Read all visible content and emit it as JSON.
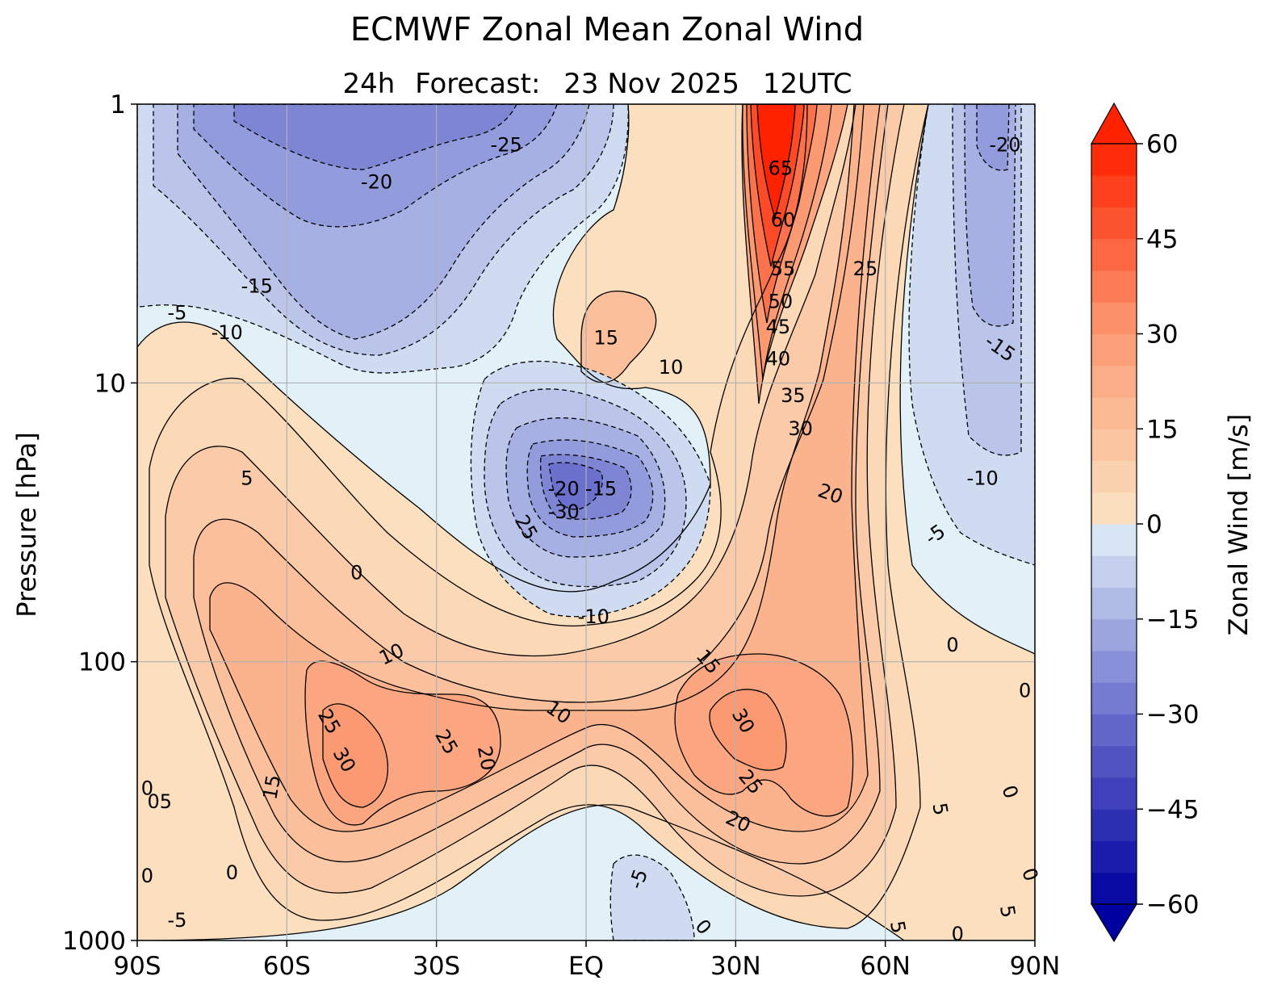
{
  "title": "ECMWF Zonal Mean Zonal Wind",
  "subtitle": {
    "lead": "24h",
    "label": "Forecast:",
    "date": "23 Nov 2025",
    "time": "12UTC"
  },
  "chart_data": {
    "type": "heatmap",
    "subtype": "filled-contour",
    "ylabel": "Pressure [hPa]",
    "yscale": "log",
    "ylim": [
      1000,
      1
    ],
    "xlim": [
      -90,
      90
    ],
    "grid": true,
    "x_ticks": [
      {
        "value": -90,
        "label": "90S"
      },
      {
        "value": -60,
        "label": "60S"
      },
      {
        "value": -30,
        "label": "30S"
      },
      {
        "value": 0,
        "label": "EQ"
      },
      {
        "value": 30,
        "label": "30N"
      },
      {
        "value": 60,
        "label": "60N"
      },
      {
        "value": 90,
        "label": "90N"
      }
    ],
    "y_ticks": [
      {
        "value": 1,
        "label": "1"
      },
      {
        "value": 10,
        "label": "10"
      },
      {
        "value": 100,
        "label": "100"
      },
      {
        "value": 1000,
        "label": "1000"
      }
    ],
    "colorbar": {
      "label": "Zonal Wind [m/s]",
      "min": -60,
      "max": 60,
      "step": 5,
      "extend": "both",
      "ticks": [
        {
          "value": 60,
          "label": "60"
        },
        {
          "value": 45,
          "label": "45"
        },
        {
          "value": 30,
          "label": "30"
        },
        {
          "value": 15,
          "label": "15"
        },
        {
          "value": 0,
          "label": "0"
        },
        {
          "value": -15,
          "label": "−15"
        },
        {
          "value": -30,
          "label": "−30"
        },
        {
          "value": -45,
          "label": "−45"
        },
        {
          "value": -60,
          "label": "−60"
        }
      ],
      "colors": {
        "neg_end": "#0000a0",
        "neg_mid": "#6a70cc",
        "neg_near": "#e2f0f8",
        "pos_near": "#fbe4c4",
        "pos_mid": "#fb9a72",
        "pos_end": "#ff2200"
      }
    },
    "features": [
      {
        "name": "SH polar night jet region (weak easterly aloft)",
        "lat": -40,
        "pressure": 2,
        "value": -25
      },
      {
        "name": "NH polar night jet",
        "lat": 40,
        "pressure": 1.5,
        "value": 65
      },
      {
        "name": "Equatorial easterly core",
        "lat": -5,
        "pressure": 25,
        "value": -30
      },
      {
        "name": "SH subtropical jet",
        "lat": -45,
        "pressure": 200,
        "value": 30
      },
      {
        "name": "NH subtropical jet",
        "lat": 35,
        "pressure": 200,
        "value": 30
      },
      {
        "name": "Tropical westerly pocket",
        "lat": 5,
        "pressure": 7,
        "value": 15
      },
      {
        "name": "NH polar easterlies aloft",
        "lat": 80,
        "pressure": 2,
        "value": -20
      }
    ],
    "contour_labels": [
      {
        "text": "-25",
        "lat": -16,
        "p": 1.4,
        "rot": 0
      },
      {
        "text": "-20",
        "lat": -42,
        "p": 1.9,
        "rot": 0
      },
      {
        "text": "-15",
        "lat": -66,
        "p": 4.5,
        "rot": 0
      },
      {
        "text": "-5",
        "lat": -82,
        "p": 5.6,
        "rot": 0
      },
      {
        "text": "-10",
        "lat": -72,
        "p": 6.6,
        "rot": 0
      },
      {
        "text": "65",
        "lat": 39,
        "p": 1.7,
        "rot": 0
      },
      {
        "text": "60",
        "lat": 39.5,
        "p": 2.6,
        "rot": 0
      },
      {
        "text": "55",
        "lat": 39.5,
        "p": 3.9,
        "rot": 0
      },
      {
        "text": "50",
        "lat": 39,
        "p": 5.1,
        "rot": 0
      },
      {
        "text": "45",
        "lat": 38.5,
        "p": 6.3,
        "rot": 0
      },
      {
        "text": "40",
        "lat": 38.5,
        "p": 8.2,
        "rot": 0
      },
      {
        "text": "35",
        "lat": 41.5,
        "p": 11.1,
        "rot": 0
      },
      {
        "text": "30",
        "lat": 43,
        "p": 14.6,
        "rot": 0
      },
      {
        "text": "25",
        "lat": 56,
        "p": 3.9,
        "rot": 0
      },
      {
        "text": "15",
        "lat": 4,
        "p": 6.9,
        "rot": 0
      },
      {
        "text": "10",
        "lat": 17,
        "p": 8.8,
        "rot": 0
      },
      {
        "text": "20",
        "lat": 49,
        "p": 25,
        "rot": 20
      },
      {
        "text": "-20",
        "lat": 84,
        "p": 1.4,
        "rot": 0
      },
      {
        "text": "-15",
        "lat": 83,
        "p": 7.5,
        "rot": 35
      },
      {
        "text": "-10",
        "lat": 79.5,
        "p": 22,
        "rot": 0
      },
      {
        "text": "-5",
        "lat": 70,
        "p": 35,
        "rot": -35
      },
      {
        "text": "-20",
        "lat": -4.5,
        "p": 24,
        "rot": 0
      },
      {
        "text": "-15",
        "lat": 3,
        "p": 24,
        "rot": 0
      },
      {
        "text": "-30",
        "lat": -4.5,
        "p": 29,
        "rot": 0
      },
      {
        "text": "25",
        "lat": -12,
        "p": 33,
        "rot": 60
      },
      {
        "text": "-10",
        "lat": 1.5,
        "p": 69,
        "rot": 0
      },
      {
        "text": "5",
        "lat": -68,
        "p": 22,
        "rot": 0
      },
      {
        "text": "0",
        "lat": -46,
        "p": 48,
        "rot": 0
      },
      {
        "text": "10",
        "lat": -39,
        "p": 94,
        "rot": -25
      },
      {
        "text": "15",
        "lat": 24.5,
        "p": 100,
        "rot": 50
      },
      {
        "text": "10",
        "lat": -5.5,
        "p": 152,
        "rot": 35
      },
      {
        "text": "25",
        "lat": -51.5,
        "p": 164,
        "rot": 60
      },
      {
        "text": "30",
        "lat": -48.5,
        "p": 225,
        "rot": 60
      },
      {
        "text": "25",
        "lat": -28,
        "p": 194,
        "rot": 60
      },
      {
        "text": "20",
        "lat": -20,
        "p": 222,
        "rot": 80
      },
      {
        "text": "15",
        "lat": -63,
        "p": 282,
        "rot": -80
      },
      {
        "text": "30",
        "lat": 31.5,
        "p": 163,
        "rot": 60
      },
      {
        "text": "25",
        "lat": 33,
        "p": 270,
        "rot": 50
      },
      {
        "text": "20",
        "lat": 30.5,
        "p": 375,
        "rot": 25
      },
      {
        "text": "0",
        "lat": 73.5,
        "p": 87,
        "rot": 0
      },
      {
        "text": "0",
        "lat": 88,
        "p": 127,
        "rot": 0
      },
      {
        "text": "0",
        "lat": -88,
        "p": 285,
        "rot": 0
      },
      {
        "text": "05",
        "lat": -85.5,
        "p": 318,
        "rot": 0
      },
      {
        "text": "0",
        "lat": -88,
        "p": 586,
        "rot": 0
      },
      {
        "text": "0",
        "lat": -71,
        "p": 572,
        "rot": 0
      },
      {
        "text": "-5",
        "lat": -82,
        "p": 847,
        "rot": 0
      },
      {
        "text": "-5",
        "lat": 10.5,
        "p": 602,
        "rot": -70
      },
      {
        "text": "0",
        "lat": 23.5,
        "p": 895,
        "rot": 50
      },
      {
        "text": "5",
        "lat": 62.5,
        "p": 895,
        "rot": 80
      },
      {
        "text": "5",
        "lat": 71,
        "p": 338,
        "rot": 80
      },
      {
        "text": "0",
        "lat": 85,
        "p": 293,
        "rot": 70
      },
      {
        "text": "0",
        "lat": 74.5,
        "p": 949,
        "rot": 0
      },
      {
        "text": "5",
        "lat": 84.5,
        "p": 787,
        "rot": 80
      },
      {
        "text": "0",
        "lat": 89,
        "p": 580,
        "rot": 70
      }
    ]
  }
}
